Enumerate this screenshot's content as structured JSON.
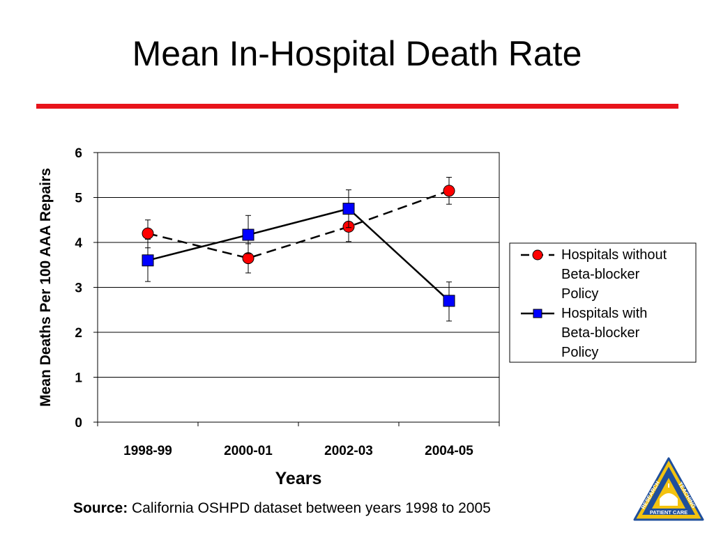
{
  "slide": {
    "title": "Mean In-Hospital Death Rate",
    "source_label": "Source:",
    "source_text": " California OSHPD dataset between years 1998 to 2005"
  },
  "logo": {
    "top_left_text": "RESEARCH",
    "top_right_text": "TEACHING",
    "bottom_text": "PATIENT CARE",
    "colors": {
      "outer": "#f3c20f",
      "inner": "#1f4f9c"
    }
  },
  "colors": {
    "title_rule": "#e8141b",
    "series_without": "#ff0000",
    "series_with": "#0000ff"
  },
  "chart_data": {
    "type": "line",
    "categories": [
      "1998-99",
      "2000-01",
      "2002-03",
      "2004-05"
    ],
    "xlabel": "Years",
    "ylabel": "Mean Deaths Per 100 AAA Repairs",
    "ylim": [
      0,
      6
    ],
    "yticks": [
      0,
      1,
      2,
      3,
      4,
      5,
      6
    ],
    "grid": true,
    "legend_position": "right",
    "series": [
      {
        "name": "Hospitals without Beta-blocker Policy",
        "legend_lines": [
          "Hospitals without",
          "Beta-blocker",
          "Policy"
        ],
        "marker": "circle",
        "line_style": "dashed",
        "color": "#ff0000",
        "values": [
          4.2,
          3.65,
          4.35,
          5.15
        ],
        "error_low": [
          3.88,
          3.32,
          4.02,
          4.85
        ],
        "error_high": [
          4.5,
          3.97,
          4.68,
          5.45
        ]
      },
      {
        "name": "Hospitals with Beta-blocker Policy",
        "legend_lines": [
          "Hospitals with",
          "Beta-blocker",
          "Policy"
        ],
        "marker": "square",
        "line_style": "solid",
        "color": "#0000ff",
        "values": [
          3.6,
          4.17,
          4.75,
          2.7
        ],
        "error_low": [
          3.13,
          3.75,
          4.33,
          2.25
        ],
        "error_high": [
          4.07,
          4.6,
          5.17,
          3.12
        ]
      }
    ]
  }
}
